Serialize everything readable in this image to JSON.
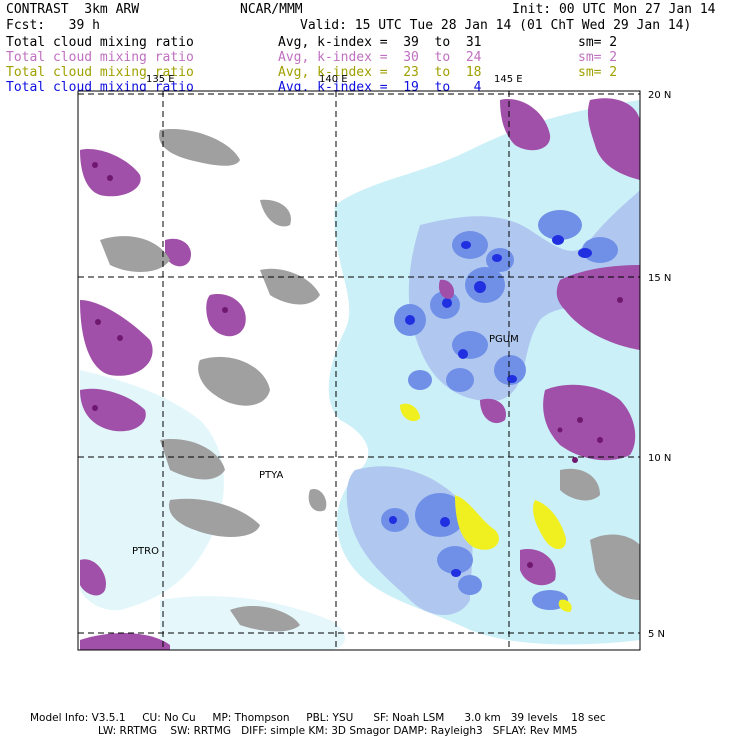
{
  "header": {
    "left_line1": "CONTRAST  3km ARW",
    "center_line1": "NCAR/MMM",
    "right_line1": "Init: 00 UTC Mon 27 Jan 14",
    "left_line2": "Fcst:   39 h",
    "right_line2": "Valid: 15 UTC Tue 28 Jan 14 (01 ChT Wed 29 Jan 14)",
    "fields": [
      {
        "name": "Total cloud mixing ratio",
        "avg": "Avg, k-index =  39  to  31",
        "sm": "sm= 2",
        "color": "#000000"
      },
      {
        "name": "Total cloud mixing ratio",
        "avg": "Avg, k-index =  30  to  24",
        "sm": "sm= 2",
        "color": "#c070c0"
      },
      {
        "name": "Total cloud mixing ratio",
        "avg": "Avg, k-index =  23  to  18",
        "sm": "sm= 2",
        "color": "#a0a000"
      },
      {
        "name": "Total cloud mixing ratio",
        "avg": "Avg, k-index =  19  to   4",
        "sm": "",
        "color": "#1010e0"
      }
    ]
  },
  "map": {
    "lon_labels": [
      "135 E",
      "140 E",
      "145 E"
    ],
    "lat_labels": [
      "20 N",
      "15 N",
      "10 N",
      "5 N"
    ],
    "stations": [
      "PGUM",
      "PTYA",
      "PTRO"
    ],
    "colors": {
      "gray": "#a0a0a0",
      "purple": "#a050a8",
      "dark_purple": "#701870",
      "light_cyan": "#ccf0f8",
      "light_blue": "#b0c8f0",
      "mid_blue": "#7090e8",
      "deep_blue": "#2030e0",
      "yellow": "#f0f020"
    }
  },
  "footer": {
    "line1": "Model Info: V3.5.1     CU: No Cu     MP: Thompson     PBL: YSU      SF: Noah LSM      3.0 km   39 levels    18 sec",
    "line2": "LW: RRTMG    SW: RRTMG   DIFF: simple KM: 3D Smagor DAMP: Rayleigh3   SFLAY: Rev MM5"
  }
}
